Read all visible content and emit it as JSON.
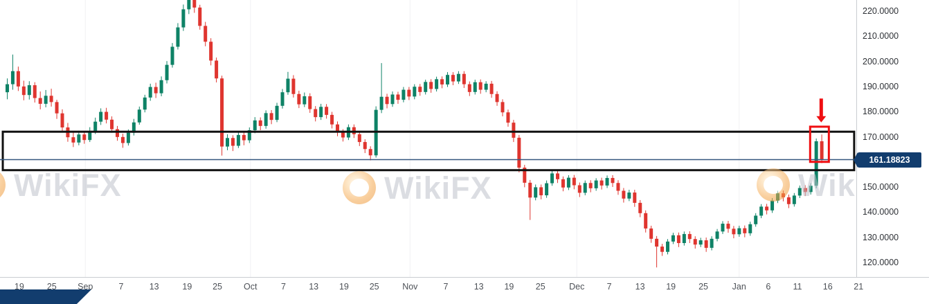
{
  "watermarks": [
    {
      "text": "WikiFX"
    },
    {
      "text": "WikiFX"
    },
    {
      "text": "WikiFX"
    }
  ],
  "chart_data": {
    "type": "candlestick",
    "title": "",
    "ylim": [
      114.5,
      224.7
    ],
    "grid": "off",
    "y_ticks": [
      {
        "price": 220,
        "label": "220.0000"
      },
      {
        "price": 210,
        "label": "210.0000"
      },
      {
        "price": 200,
        "label": "200.0000"
      },
      {
        "price": 190,
        "label": "190.0000"
      },
      {
        "price": 180,
        "label": "180.0000"
      },
      {
        "price": 170,
        "label": "170.0000"
      },
      {
        "price": 150,
        "label": "150.0000"
      },
      {
        "price": 140,
        "label": "140.0000"
      },
      {
        "price": 130,
        "label": "130.0000"
      },
      {
        "price": 120,
        "label": "120.0000"
      }
    ],
    "x_ticks": [
      {
        "label": "19",
        "i": 2.5
      },
      {
        "label": "25",
        "i": 8.4
      },
      {
        "label": "Sep",
        "i": 14.5
      },
      {
        "label": "7",
        "i": 21
      },
      {
        "label": "13",
        "i": 27
      },
      {
        "label": "19",
        "i": 33
      },
      {
        "label": "25",
        "i": 38.5
      },
      {
        "label": "Oct",
        "i": 44.5
      },
      {
        "label": "7",
        "i": 50.5
      },
      {
        "label": "13",
        "i": 56
      },
      {
        "label": "19",
        "i": 61.5
      },
      {
        "label": "25",
        "i": 67
      },
      {
        "label": "Nov",
        "i": 73.5
      },
      {
        "label": "7",
        "i": 80
      },
      {
        "label": "13",
        "i": 86
      },
      {
        "label": "19",
        "i": 91.5
      },
      {
        "label": "25",
        "i": 97.2
      },
      {
        "label": "Dec",
        "i": 103.8
      },
      {
        "label": "7",
        "i": 109.7
      },
      {
        "label": "13",
        "i": 115.3
      },
      {
        "label": "19",
        "i": 120.9
      },
      {
        "label": "25",
        "i": 126.8
      },
      {
        "label": "Jan",
        "i": 133.3
      },
      {
        "label": "6",
        "i": 138.6
      },
      {
        "label": "11",
        "i": 143.9
      },
      {
        "label": "16",
        "i": 149.4
      },
      {
        "label": "21",
        "i": 155
      }
    ],
    "colors": {
      "up": "#0e8266",
      "down": "#df352f",
      "range_box": "#101010",
      "highlight": "#ef0e11",
      "price_line": "#35567e",
      "price_tag_bg": "#123d6e"
    },
    "annotations": {
      "range_box": {
        "start_i": -0.5,
        "end_i": 154.2,
        "top_price": 172.3,
        "bottom_price": 157.0
      },
      "current_price_line": {
        "price": 161.18823
      },
      "price_tag": {
        "label": "161.18823"
      },
      "highlight_box": {
        "start_i": 146.2,
        "end_i": 149.6,
        "top_price": 174.3,
        "bottom_price": 160.3
      },
      "down_arrow": {
        "i": 147.9,
        "from_price": 185.5,
        "to_price": 176.0
      }
    },
    "candles": [
      [
        188.0,
        193.5,
        185.2,
        191.2
      ],
      [
        191.2,
        203.0,
        189.0,
        196.4
      ],
      [
        196.4,
        198.2,
        188.5,
        190.3
      ],
      [
        190.3,
        192.6,
        184.8,
        186.9
      ],
      [
        186.9,
        192.4,
        185.1,
        190.8
      ],
      [
        190.8,
        192.0,
        183.9,
        185.7
      ],
      [
        185.7,
        188.3,
        181.2,
        183.4
      ],
      [
        183.4,
        188.9,
        182.0,
        186.6
      ],
      [
        186.6,
        189.4,
        182.3,
        184.1
      ],
      [
        184.1,
        185.0,
        177.4,
        179.6
      ],
      [
        179.6,
        181.2,
        172.5,
        174.0
      ],
      [
        174.0,
        175.8,
        168.3,
        170.1
      ],
      [
        170.1,
        172.0,
        166.2,
        168.0
      ],
      [
        168.0,
        172.7,
        166.9,
        171.2
      ],
      [
        171.2,
        172.4,
        167.5,
        169.0
      ],
      [
        169.0,
        174.1,
        168.2,
        172.6
      ],
      [
        172.6,
        177.9,
        171.4,
        176.3
      ],
      [
        176.3,
        181.6,
        175.0,
        180.2
      ],
      [
        180.2,
        181.8,
        175.6,
        177.1
      ],
      [
        177.1,
        178.4,
        171.9,
        173.3
      ],
      [
        173.3,
        174.6,
        168.7,
        170.2
      ],
      [
        170.2,
        171.5,
        165.9,
        167.8
      ],
      [
        167.8,
        173.2,
        166.8,
        171.9
      ],
      [
        171.9,
        177.4,
        170.8,
        176.0
      ],
      [
        176.0,
        182.3,
        175.1,
        181.1
      ],
      [
        181.1,
        187.0,
        180.0,
        185.9
      ],
      [
        185.9,
        191.4,
        184.6,
        190.1
      ],
      [
        190.1,
        191.8,
        185.7,
        187.6
      ],
      [
        187.6,
        194.3,
        186.4,
        192.8
      ],
      [
        192.8,
        200.4,
        191.5,
        198.9
      ],
      [
        198.9,
        207.6,
        197.8,
        206.1
      ],
      [
        206.1,
        215.5,
        205.0,
        213.8
      ],
      [
        213.8,
        222.9,
        212.4,
        221.0
      ],
      [
        221.0,
        228.5,
        219.1,
        227.2
      ],
      [
        227.2,
        229.0,
        219.6,
        221.7
      ],
      [
        221.7,
        222.8,
        212.9,
        214.4
      ],
      [
        214.4,
        216.0,
        206.3,
        208.1
      ],
      [
        208.1,
        209.5,
        198.7,
        200.6
      ],
      [
        200.6,
        201.8,
        191.9,
        193.5
      ],
      [
        193.5,
        194.6,
        162.8,
        166.4
      ],
      [
        166.4,
        171.3,
        164.9,
        169.8
      ],
      [
        169.8,
        170.9,
        164.6,
        166.7
      ],
      [
        166.7,
        172.2,
        165.8,
        171.0
      ],
      [
        171.0,
        172.1,
        166.9,
        168.9
      ],
      [
        168.9,
        174.0,
        167.8,
        172.9
      ],
      [
        172.9,
        178.1,
        171.7,
        176.8
      ],
      [
        176.8,
        178.0,
        172.9,
        174.6
      ],
      [
        174.6,
        180.8,
        173.5,
        179.7
      ],
      [
        179.7,
        180.9,
        175.3,
        177.0
      ],
      [
        177.0,
        183.8,
        176.1,
        182.6
      ],
      [
        182.6,
        189.3,
        181.5,
        188.0
      ],
      [
        188.0,
        196.1,
        187.0,
        193.4
      ],
      [
        193.4,
        194.8,
        185.9,
        187.3
      ],
      [
        187.3,
        188.6,
        181.7,
        183.2
      ],
      [
        183.2,
        187.9,
        182.1,
        186.4
      ],
      [
        186.4,
        187.6,
        179.8,
        181.3
      ],
      [
        181.3,
        182.5,
        176.4,
        178.1
      ],
      [
        178.1,
        183.4,
        177.0,
        182.2
      ],
      [
        182.2,
        183.3,
        177.5,
        179.0
      ],
      [
        179.0,
        180.2,
        173.6,
        175.2
      ],
      [
        175.2,
        176.4,
        170.5,
        172.1
      ],
      [
        172.1,
        173.3,
        168.4,
        170.0
      ],
      [
        170.0,
        175.2,
        169.0,
        174.1
      ],
      [
        174.1,
        175.2,
        169.8,
        171.3
      ],
      [
        171.3,
        172.4,
        166.6,
        168.2
      ],
      [
        168.2,
        169.3,
        163.8,
        165.4
      ],
      [
        165.4,
        166.5,
        160.9,
        162.9
      ],
      [
        162.9,
        182.4,
        162.0,
        181.0
      ],
      [
        181.0,
        199.6,
        179.7,
        186.2
      ],
      [
        186.2,
        187.4,
        181.6,
        183.3
      ],
      [
        183.3,
        188.3,
        182.2,
        187.1
      ],
      [
        187.1,
        188.2,
        183.4,
        185.0
      ],
      [
        185.0,
        190.1,
        184.0,
        189.0
      ],
      [
        189.0,
        190.1,
        184.9,
        186.3
      ],
      [
        186.3,
        191.2,
        185.2,
        190.2
      ],
      [
        190.2,
        191.3,
        186.6,
        188.1
      ],
      [
        188.1,
        193.0,
        187.1,
        192.1
      ],
      [
        192.1,
        193.2,
        187.8,
        189.3
      ],
      [
        189.3,
        194.2,
        188.3,
        193.2
      ],
      [
        193.2,
        194.3,
        189.6,
        191.1
      ],
      [
        191.1,
        196.0,
        190.1,
        194.9
      ],
      [
        194.9,
        196.0,
        190.8,
        192.3
      ],
      [
        192.3,
        196.4,
        191.3,
        195.3
      ],
      [
        195.3,
        196.4,
        189.7,
        191.2
      ],
      [
        191.2,
        192.3,
        186.5,
        188.1
      ],
      [
        188.1,
        193.0,
        187.1,
        192.0
      ],
      [
        192.0,
        193.1,
        187.4,
        189.0
      ],
      [
        189.0,
        192.4,
        188.0,
        191.4
      ],
      [
        191.4,
        192.5,
        185.8,
        187.3
      ],
      [
        187.3,
        188.4,
        182.6,
        184.1
      ],
      [
        184.1,
        185.2,
        178.4,
        180.0
      ],
      [
        180.0,
        181.1,
        174.3,
        175.9
      ],
      [
        175.9,
        177.0,
        168.2,
        169.9
      ],
      [
        169.9,
        171.0,
        156.1,
        158.0
      ],
      [
        158.0,
        159.1,
        150.2,
        152.0
      ],
      [
        152.0,
        153.1,
        137.2,
        146.1
      ],
      [
        146.1,
        151.3,
        145.0,
        150.2
      ],
      [
        150.2,
        151.3,
        145.4,
        147.0
      ],
      [
        147.0,
        152.9,
        146.0,
        151.8
      ],
      [
        151.8,
        156.8,
        150.8,
        155.7
      ],
      [
        155.7,
        156.8,
        151.9,
        153.4
      ],
      [
        153.4,
        154.5,
        148.6,
        150.1
      ],
      [
        150.1,
        155.0,
        149.1,
        154.0
      ],
      [
        154.0,
        155.1,
        149.4,
        151.0
      ],
      [
        151.0,
        152.1,
        146.3,
        148.0
      ],
      [
        148.0,
        152.9,
        147.0,
        151.9
      ],
      [
        151.9,
        153.0,
        148.2,
        149.8
      ],
      [
        149.8,
        153.8,
        148.8,
        152.9
      ],
      [
        152.9,
        154.0,
        149.3,
        150.9
      ],
      [
        150.9,
        154.9,
        149.9,
        153.9
      ],
      [
        153.9,
        155.0,
        150.3,
        151.9
      ],
      [
        151.9,
        153.0,
        147.2,
        148.8
      ],
      [
        148.8,
        149.9,
        144.1,
        145.7
      ],
      [
        145.7,
        149.2,
        144.7,
        148.1
      ],
      [
        148.1,
        149.2,
        142.4,
        144.0
      ],
      [
        144.0,
        145.1,
        138.3,
        139.9
      ],
      [
        139.9,
        141.0,
        132.2,
        133.8
      ],
      [
        133.8,
        134.9,
        128.1,
        129.7
      ],
      [
        129.7,
        130.8,
        118.3,
        126.6
      ],
      [
        126.6,
        127.7,
        122.9,
        124.5
      ],
      [
        124.5,
        129.6,
        123.5,
        128.6
      ],
      [
        128.6,
        132.1,
        127.6,
        131.1
      ],
      [
        131.1,
        132.2,
        126.4,
        128.0
      ],
      [
        128.0,
        132.6,
        127.0,
        131.6
      ],
      [
        131.6,
        132.7,
        128.0,
        129.6
      ],
      [
        129.6,
        130.7,
        125.8,
        127.4
      ],
      [
        127.4,
        130.1,
        126.4,
        129.1
      ],
      [
        129.1,
        130.2,
        124.5,
        126.1
      ],
      [
        126.1,
        130.7,
        125.1,
        129.7
      ],
      [
        129.7,
        133.6,
        128.7,
        132.6
      ],
      [
        132.6,
        136.7,
        131.6,
        135.7
      ],
      [
        135.7,
        136.8,
        132.1,
        133.7
      ],
      [
        133.7,
        134.8,
        129.9,
        131.5
      ],
      [
        131.5,
        134.9,
        130.5,
        133.9
      ],
      [
        133.9,
        135.0,
        130.3,
        131.9
      ],
      [
        131.9,
        136.5,
        130.9,
        135.5
      ],
      [
        135.5,
        139.9,
        134.5,
        138.9
      ],
      [
        138.9,
        143.5,
        137.9,
        142.5
      ],
      [
        142.5,
        143.6,
        139.4,
        141.0
      ],
      [
        141.0,
        145.9,
        140.0,
        144.9
      ],
      [
        144.9,
        148.8,
        143.9,
        147.8
      ],
      [
        147.8,
        148.9,
        144.6,
        146.2
      ],
      [
        146.2,
        147.3,
        141.9,
        143.5
      ],
      [
        143.5,
        147.9,
        142.5,
        146.9
      ],
      [
        146.9,
        150.9,
        145.9,
        149.9
      ],
      [
        149.9,
        151.0,
        146.7,
        148.3
      ],
      [
        148.3,
        151.8,
        147.3,
        150.8
      ],
      [
        150.8,
        169.6,
        149.8,
        168.5
      ],
      [
        168.5,
        171.2,
        159.8,
        161.2
      ]
    ]
  }
}
